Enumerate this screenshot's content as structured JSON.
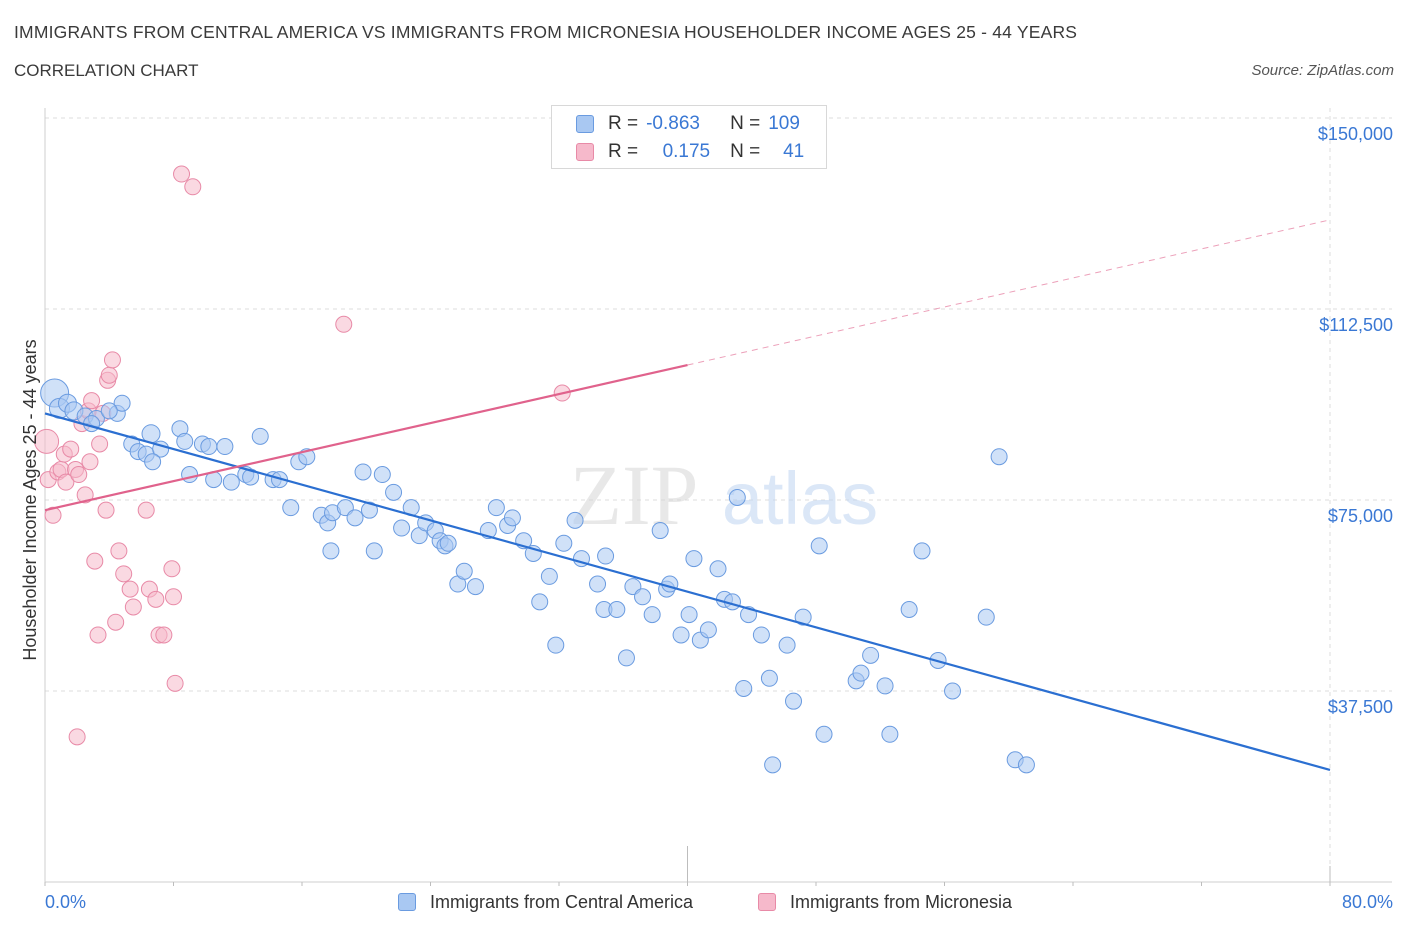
{
  "title": "IMMIGRANTS FROM CENTRAL AMERICA VS IMMIGRANTS FROM MICRONESIA HOUSEHOLDER INCOME AGES 25 - 44 YEARS",
  "subtitle": "CORRELATION CHART",
  "source": "Source: ZipAtlas.com",
  "watermark": {
    "zip": "ZIP",
    "atlas": "atlas"
  },
  "legend": {
    "rows": [
      {
        "r_label": "R =",
        "r_value": "-0.863",
        "n_label": "N =",
        "n_value": "109",
        "color": "#a9c8f2"
      },
      {
        "r_label": "R =",
        "r_value": "0.175",
        "n_label": "N =",
        "n_value": "41",
        "color": "#f6b9cb"
      }
    ]
  },
  "colors": {
    "blue_fill": "#a9c8f2",
    "blue_stroke": "#6a9be0",
    "blue_line": "#2b6fd1",
    "pink_fill": "#f6b9cb",
    "pink_stroke": "#e88aa7",
    "pink_line": "#e0628c",
    "axis_label": "#3a78d4",
    "grid": "#dcdcdc"
  },
  "chart_data": {
    "type": "scatter",
    "title": "IMMIGRANTS FROM CENTRAL AMERICA VS IMMIGRANTS FROM MICRONESIA HOUSEHOLDER INCOME AGES 25 - 44 YEARS",
    "xlabel": "",
    "ylabel": "Householder Income Ages 25 - 44 years",
    "xlim": [
      0,
      80
    ],
    "ylim": [
      0,
      150000
    ],
    "x_tick_labels": [
      "0.0%",
      "80.0%"
    ],
    "y_ticks": [
      37500,
      75000,
      112500,
      150000
    ],
    "y_tick_labels": [
      "$37,500",
      "$75,000",
      "$112,500",
      "$150,000"
    ],
    "grid": true,
    "legend_position": "bottom",
    "series": [
      {
        "name": "Immigrants from Central America",
        "trend": {
          "x": [
            0,
            80
          ],
          "y": [
            92000,
            22000
          ],
          "style": "solid"
        },
        "points": [
          [
            0.6,
            96000,
            14
          ],
          [
            0.9,
            93000,
            10
          ],
          [
            1.4,
            94000,
            9
          ],
          [
            1.8,
            92500,
            9
          ],
          [
            2.5,
            91500,
            8
          ],
          [
            3.2,
            91000,
            8
          ],
          [
            4.5,
            92000,
            8
          ],
          [
            4.8,
            94000,
            8
          ],
          [
            5.4,
            86000,
            8
          ],
          [
            5.8,
            84500,
            8
          ],
          [
            6.3,
            84000,
            8
          ],
          [
            6.6,
            88000,
            9
          ],
          [
            7.2,
            85000,
            8
          ],
          [
            8.4,
            89000,
            8
          ],
          [
            8.7,
            86500,
            8
          ],
          [
            9.0,
            80000,
            8
          ],
          [
            9.8,
            86000,
            8
          ],
          [
            10.2,
            85500,
            8
          ],
          [
            11.2,
            85500,
            8
          ],
          [
            10.5,
            79000,
            8
          ],
          [
            11.6,
            78500,
            8
          ],
          [
            12.5,
            80000,
            8
          ],
          [
            12.8,
            79500,
            8
          ],
          [
            13.4,
            87500,
            8
          ],
          [
            14.2,
            79000,
            8
          ],
          [
            14.6,
            79000,
            8
          ],
          [
            15.3,
            73500,
            8
          ],
          [
            15.8,
            82500,
            8
          ],
          [
            16.3,
            83500,
            8
          ],
          [
            17.2,
            72000,
            8
          ],
          [
            17.6,
            70500,
            8
          ],
          [
            17.8,
            65000,
            8
          ],
          [
            17.9,
            72500,
            8
          ],
          [
            18.7,
            73500,
            8
          ],
          [
            19.3,
            71500,
            8
          ],
          [
            19.8,
            80500,
            8
          ],
          [
            20.2,
            73000,
            8
          ],
          [
            20.5,
            65000,
            8
          ],
          [
            21.0,
            80000,
            8
          ],
          [
            21.7,
            76500,
            8
          ],
          [
            22.2,
            69500,
            8
          ],
          [
            22.8,
            73500,
            8
          ],
          [
            23.3,
            68000,
            8
          ],
          [
            23.7,
            70500,
            8
          ],
          [
            24.3,
            69000,
            8
          ],
          [
            24.6,
            67000,
            8
          ],
          [
            24.9,
            66000,
            8
          ],
          [
            25.1,
            66500,
            8
          ],
          [
            25.7,
            58500,
            8
          ],
          [
            26.1,
            61000,
            8
          ],
          [
            26.8,
            58000,
            8
          ],
          [
            27.6,
            69000,
            8
          ],
          [
            28.1,
            73500,
            8
          ],
          [
            28.8,
            70000,
            8
          ],
          [
            29.1,
            71500,
            8
          ],
          [
            29.8,
            67000,
            8
          ],
          [
            30.4,
            64500,
            8
          ],
          [
            30.8,
            55000,
            8
          ],
          [
            31.4,
            60000,
            8
          ],
          [
            31.8,
            46500,
            8
          ],
          [
            32.3,
            66500,
            8
          ],
          [
            33.0,
            71000,
            8
          ],
          [
            33.4,
            63500,
            8
          ],
          [
            34.4,
            58500,
            8
          ],
          [
            34.8,
            53500,
            8
          ],
          [
            34.9,
            64000,
            8
          ],
          [
            35.6,
            53500,
            8
          ],
          [
            36.2,
            44000,
            8
          ],
          [
            36.6,
            58000,
            8
          ],
          [
            37.2,
            56000,
            8
          ],
          [
            37.8,
            52500,
            8
          ],
          [
            38.3,
            69000,
            8
          ],
          [
            38.7,
            57500,
            8
          ],
          [
            38.9,
            58500,
            8
          ],
          [
            39.6,
            48500,
            8
          ],
          [
            40.1,
            52500,
            8
          ],
          [
            40.4,
            63500,
            8
          ],
          [
            40.8,
            47500,
            8
          ],
          [
            41.3,
            49500,
            8
          ],
          [
            41.9,
            61500,
            8
          ],
          [
            42.3,
            55500,
            8
          ],
          [
            42.8,
            55000,
            8
          ],
          [
            43.1,
            75500,
            8
          ],
          [
            43.5,
            38000,
            8
          ],
          [
            43.8,
            52500,
            8
          ],
          [
            44.6,
            48500,
            8
          ],
          [
            45.1,
            40000,
            8
          ],
          [
            45.3,
            23000,
            8
          ],
          [
            46.2,
            46500,
            8
          ],
          [
            46.6,
            35500,
            8
          ],
          [
            47.2,
            52000,
            8
          ],
          [
            48.2,
            66000,
            8
          ],
          [
            48.5,
            29000,
            8
          ],
          [
            50.5,
            39500,
            8
          ],
          [
            50.8,
            41000,
            8
          ],
          [
            51.4,
            44500,
            8
          ],
          [
            52.3,
            38500,
            8
          ],
          [
            52.6,
            29000,
            8
          ],
          [
            53.8,
            53500,
            8
          ],
          [
            54.6,
            65000,
            8
          ],
          [
            55.6,
            43500,
            8
          ],
          [
            56.5,
            37500,
            8
          ],
          [
            58.6,
            52000,
            8
          ],
          [
            59.4,
            83500,
            8
          ],
          [
            60.4,
            24000,
            8
          ],
          [
            61.1,
            23000,
            8
          ],
          [
            4.0,
            92500,
            8
          ],
          [
            2.9,
            90000,
            8
          ],
          [
            6.7,
            82500,
            8
          ]
        ]
      },
      {
        "name": "Immigrants from Micronesia",
        "trend": {
          "x": [
            0,
            40
          ],
          "y": [
            73000,
            101500
          ],
          "style": "solid"
        },
        "trend_extension": {
          "x": [
            40,
            80
          ],
          "y": [
            101500,
            130000
          ],
          "style": "dashed"
        },
        "points": [
          [
            0.1,
            86500,
            12
          ],
          [
            0.2,
            79000,
            8
          ],
          [
            0.5,
            72000,
            8
          ],
          [
            0.8,
            80500,
            8
          ],
          [
            1.0,
            81000,
            8
          ],
          [
            1.2,
            84000,
            8
          ],
          [
            1.3,
            78500,
            8
          ],
          [
            1.6,
            85000,
            8
          ],
          [
            1.9,
            81000,
            8
          ],
          [
            2.1,
            80000,
            8
          ],
          [
            2.3,
            90000,
            8
          ],
          [
            2.5,
            76000,
            8
          ],
          [
            2.8,
            82500,
            8
          ],
          [
            2.7,
            92500,
            8
          ],
          [
            2.9,
            94500,
            8
          ],
          [
            3.1,
            63000,
            8
          ],
          [
            3.3,
            48500,
            8
          ],
          [
            3.4,
            86000,
            8
          ],
          [
            3.6,
            92000,
            8
          ],
          [
            3.8,
            73000,
            8
          ],
          [
            3.9,
            98500,
            8
          ],
          [
            4.0,
            99500,
            8
          ],
          [
            4.2,
            102500,
            8
          ],
          [
            4.4,
            51000,
            8
          ],
          [
            4.6,
            65000,
            8
          ],
          [
            4.9,
            60500,
            8
          ],
          [
            5.3,
            57500,
            8
          ],
          [
            5.5,
            54000,
            8
          ],
          [
            6.3,
            73000,
            8
          ],
          [
            6.5,
            57500,
            8
          ],
          [
            6.9,
            55500,
            8
          ],
          [
            7.1,
            48500,
            8
          ],
          [
            7.4,
            48500,
            8
          ],
          [
            7.9,
            61500,
            8
          ],
          [
            8.0,
            56000,
            8
          ],
          [
            8.1,
            39000,
            8
          ],
          [
            8.5,
            139000,
            8
          ],
          [
            9.2,
            136500,
            8
          ],
          [
            18.6,
            109500,
            8
          ],
          [
            32.2,
            96000,
            8
          ],
          [
            2.0,
            28500,
            8
          ]
        ]
      }
    ]
  }
}
